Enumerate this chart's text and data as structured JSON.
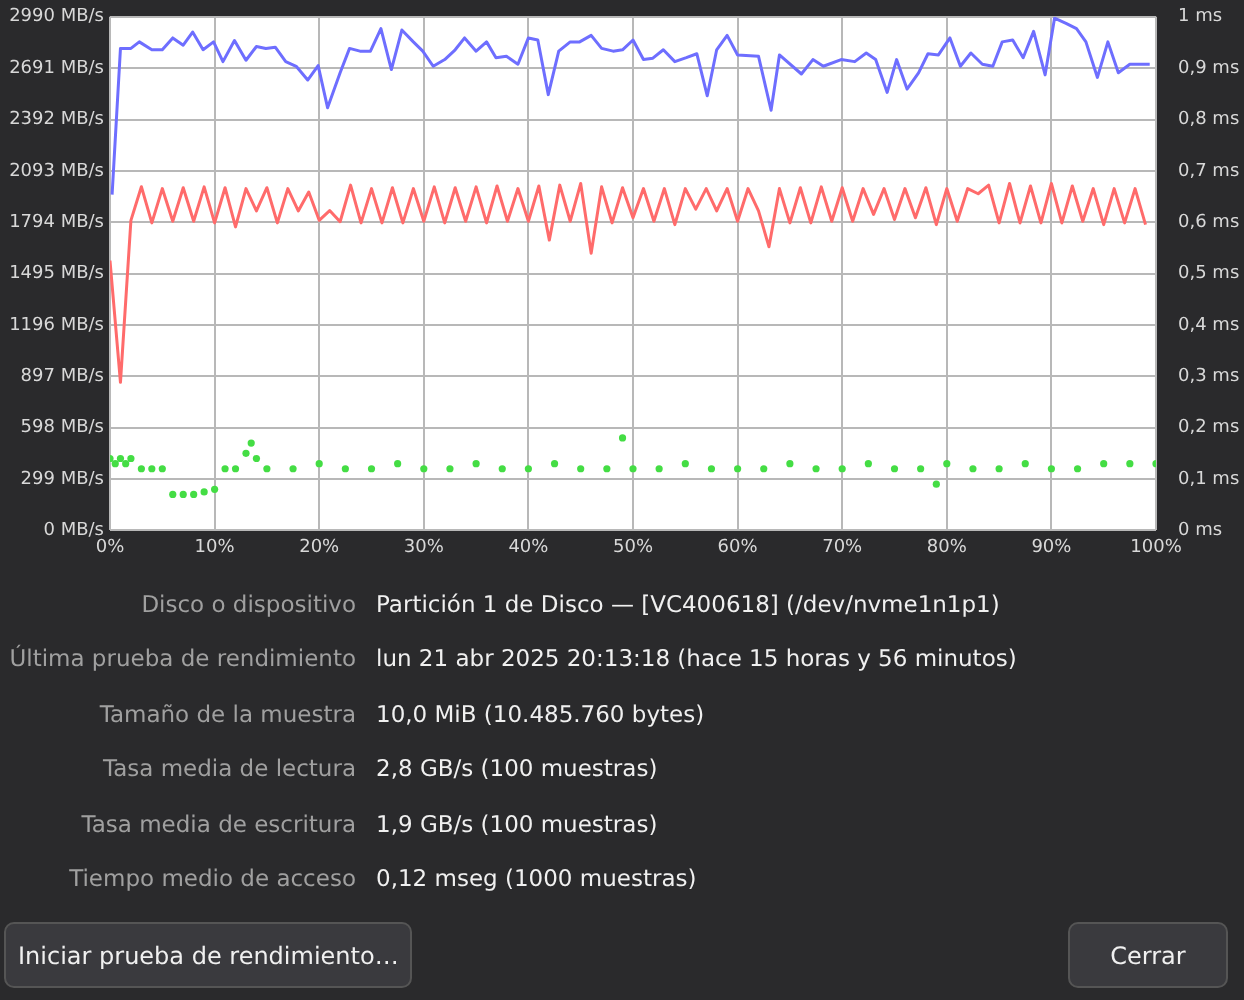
{
  "chart_data": [
    {
      "type": "line",
      "xlim": [
        0,
        100
      ],
      "xticks": [
        {
          "value": 0,
          "label": "0%"
        },
        {
          "value": 10,
          "label": "10%"
        },
        {
          "value": 20,
          "label": "20%"
        },
        {
          "value": 30,
          "label": "30%"
        },
        {
          "value": 40,
          "label": "40%"
        },
        {
          "value": 50,
          "label": "50%"
        },
        {
          "value": 60,
          "label": "60%"
        },
        {
          "value": 70,
          "label": "70%"
        },
        {
          "value": 80,
          "label": "80%"
        },
        {
          "value": 90,
          "label": "90%"
        },
        {
          "value": 100,
          "label": "100%"
        }
      ],
      "ylim": [
        0,
        2990
      ],
      "yticks": [
        {
          "value": 0,
          "label": "0 MB/s"
        },
        {
          "value": 299,
          "label": "299 MB/s"
        },
        {
          "value": 598,
          "label": "598 MB/s"
        },
        {
          "value": 897,
          "label": "897 MB/s"
        },
        {
          "value": 1196,
          "label": "1196 MB/s"
        },
        {
          "value": 1495,
          "label": "1495 MB/s"
        },
        {
          "value": 1794,
          "label": "1794 MB/s"
        },
        {
          "value": 2093,
          "label": "2093 MB/s"
        },
        {
          "value": 2392,
          "label": "2392 MB/s"
        },
        {
          "value": 2691,
          "label": "2691 MB/s"
        },
        {
          "value": 2990,
          "label": "2990 MB/s"
        }
      ],
      "y2lim": [
        0,
        1
      ],
      "y2ticks": [
        {
          "value": 0,
          "label": "0 ms"
        },
        {
          "value": 0.1,
          "label": "0,1 ms"
        },
        {
          "value": 0.2,
          "label": "0,2 ms"
        },
        {
          "value": 0.3,
          "label": "0,3 ms"
        },
        {
          "value": 0.4,
          "label": "0,4 ms"
        },
        {
          "value": 0.5,
          "label": "0,5 ms"
        },
        {
          "value": 0.6,
          "label": "0,6 ms"
        },
        {
          "value": 0.7,
          "label": "0,7 ms"
        },
        {
          "value": 0.8,
          "label": "0,8 ms"
        },
        {
          "value": 0.9,
          "label": "0,9 ms"
        },
        {
          "value": 1,
          "label": "1 ms"
        }
      ],
      "grid": true,
      "marker": "none",
      "line_style": "solid",
      "series": [
        {
          "type": "line",
          "color": "#6e6eff",
          "x": [
            0.2,
            1,
            2,
            2.8,
            4,
            5,
            6,
            7,
            7.9,
            8.9,
            9.9,
            10.8,
            11.9,
            13,
            14,
            14.9,
            15.8,
            16.8,
            17.8,
            18.9,
            19.9,
            20.8,
            22,
            22.9,
            23.9,
            24.9,
            25.9,
            26.9,
            27.9,
            29,
            29.9,
            30.9,
            32,
            33,
            33.9,
            35,
            36,
            36.9,
            37.9,
            39,
            40,
            40.9,
            41.9,
            42.9,
            44,
            44.9,
            46,
            47,
            48.1,
            49,
            50,
            51,
            51.9,
            52.9,
            54,
            55.1,
            56.1,
            57.1,
            58,
            59,
            60,
            62,
            63.2,
            64,
            66.1,
            67.2,
            68.2,
            69.9,
            71.2,
            72.3,
            73.2,
            74.3,
            75.2,
            76.2,
            77.3,
            78.2,
            79.2,
            80.3,
            81.3,
            82.3,
            83.4,
            84.4,
            85.3,
            86.3,
            87.3,
            88.3,
            89.4,
            90.3,
            91.4,
            92.4,
            93.3,
            94.4,
            95.4,
            96.4,
            97.5,
            99.4
          ],
          "values": [
            1955,
            2806,
            2806,
            2844,
            2798,
            2798,
            2867,
            2825,
            2901,
            2798,
            2844,
            2729,
            2852,
            2737,
            2817,
            2806,
            2813,
            2729,
            2702,
            2622,
            2706,
            2461,
            2664,
            2806,
            2790,
            2790,
            2921,
            2683,
            2913,
            2844,
            2790,
            2702,
            2741,
            2798,
            2867,
            2790,
            2844,
            2752,
            2760,
            2714,
            2867,
            2855,
            2537,
            2790,
            2844,
            2844,
            2882,
            2806,
            2790,
            2798,
            2855,
            2741,
            2749,
            2798,
            2729,
            2752,
            2775,
            2530,
            2798,
            2882,
            2768,
            2760,
            2446,
            2768,
            2657,
            2741,
            2702,
            2741,
            2729,
            2779,
            2741,
            2550,
            2741,
            2569,
            2664,
            2775,
            2768,
            2867,
            2702,
            2779,
            2714,
            2702,
            2844,
            2855,
            2752,
            2905,
            2652,
            2982,
            2952,
            2921,
            2844,
            2637,
            2844,
            2664,
            2714,
            2714
          ]
        },
        {
          "type": "line",
          "color": "#ff6b6b",
          "x": [
            0,
            1,
            2,
            3,
            4,
            5,
            6,
            7,
            8,
            9,
            10,
            11,
            12,
            13,
            14,
            15,
            16,
            17,
            18,
            19,
            20,
            21,
            22,
            23,
            24,
            25,
            26,
            27,
            28,
            29,
            30,
            31,
            32,
            33,
            34,
            35,
            36,
            37,
            38,
            39,
            40,
            41,
            42,
            43,
            44,
            45,
            46,
            47,
            48,
            49,
            50,
            51,
            52,
            53,
            54,
            55,
            56,
            57,
            58,
            59,
            60,
            61,
            62,
            63,
            64,
            65,
            66,
            67,
            68,
            69,
            70,
            71,
            72,
            73,
            74,
            75,
            76,
            77,
            78,
            79,
            80,
            81,
            82,
            83,
            84,
            85,
            86,
            87,
            88,
            89,
            90,
            91,
            92,
            93,
            94,
            95,
            96,
            97,
            98,
            99
          ],
          "values": [
            1571,
            862,
            1805,
            2001,
            1790,
            1990,
            1800,
            1995,
            1800,
            2000,
            1790,
            1995,
            1767,
            1990,
            1860,
            1995,
            1790,
            1990,
            1860,
            1970,
            1805,
            1862,
            1797,
            2010,
            1790,
            1990,
            1790,
            1995,
            1790,
            1990,
            1800,
            2000,
            1790,
            1995,
            1800,
            2000,
            1790,
            2005,
            1800,
            1990,
            1800,
            2005,
            1690,
            2010,
            1800,
            2020,
            1613,
            2000,
            1790,
            1995,
            1820,
            1990,
            1800,
            1990,
            1780,
            1990,
            1870,
            1990,
            1860,
            1990,
            1800,
            1990,
            1860,
            1651,
            1990,
            1790,
            1995,
            1790,
            2000,
            1800,
            1995,
            1800,
            1990,
            1840,
            1990,
            1810,
            1990,
            1820,
            1995,
            1780,
            1990,
            1800,
            1990,
            1960,
            2010,
            1790,
            2020,
            1790,
            2005,
            1790,
            2020,
            1790,
            2005,
            1800,
            1990,
            1780,
            1990,
            1790,
            1990,
            1780
          ]
        },
        {
          "type": "scatter",
          "axis": "y2",
          "marker": "circle",
          "color": "#44dd44",
          "x": [
            0,
            0.5,
            1,
            1.5,
            2,
            3,
            4,
            5,
            6,
            7,
            8,
            9,
            10,
            11,
            12,
            13,
            13.5,
            14,
            15,
            17.5,
            20,
            22.5,
            25,
            27.5,
            30,
            32.5,
            35,
            37.5,
            40,
            42.5,
            45,
            47.5,
            49,
            50,
            52.5,
            55,
            57.5,
            60,
            62.5,
            65,
            67.5,
            70,
            72.5,
            75,
            77.5,
            79,
            80,
            82.5,
            85,
            87.5,
            90,
            92.5,
            95,
            97.5,
            100
          ],
          "values": [
            0.14,
            0.13,
            0.14,
            0.13,
            0.14,
            0.12,
            0.12,
            0.12,
            0.07,
            0.07,
            0.07,
            0.075,
            0.08,
            0.12,
            0.12,
            0.15,
            0.17,
            0.14,
            0.12,
            0.12,
            0.13,
            0.12,
            0.12,
            0.13,
            0.12,
            0.12,
            0.13,
            0.12,
            0.12,
            0.13,
            0.12,
            0.12,
            0.18,
            0.12,
            0.12,
            0.13,
            0.12,
            0.12,
            0.12,
            0.13,
            0.12,
            0.12,
            0.13,
            0.12,
            0.12,
            0.09,
            0.13,
            0.12,
            0.12,
            0.13,
            0.12,
            0.12,
            0.13,
            0.13,
            0.13
          ]
        }
      ]
    },
    {
      "type": "other",
      "annotations": [
        "Disco o dispositivo",
        "Partición 1 de Disco — [VC400618] (/dev/nvme1n1p1)",
        "Última prueba de rendimiento",
        "lun 21 abr 2025 20:13:18 (hace 15 horas y 56 minutos)",
        "Tamaño de la muestra",
        "10,0 MiB (10.485.760 bytes)",
        "Tasa media de lectura",
        "2,8 GB/s (100 muestras)",
        "Tasa media de escritura",
        "1,9 GB/s (100 muestras)",
        "Tiempo medio de acceso",
        "0,12 mseg (1000 muestras)",
        "Iniciar prueba de rendimiento…",
        "Cerrar"
      ]
    }
  ]
}
